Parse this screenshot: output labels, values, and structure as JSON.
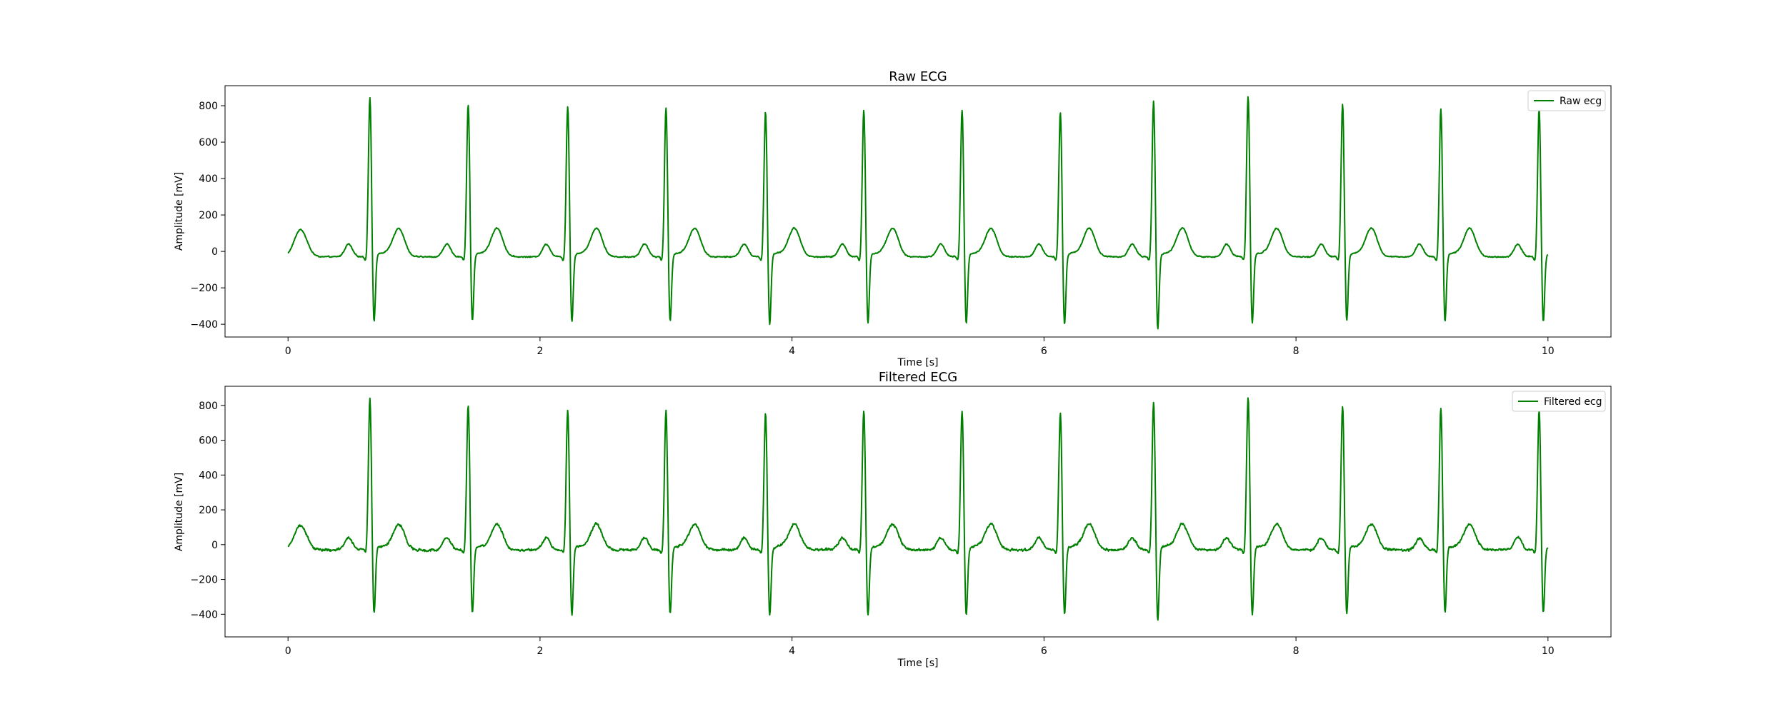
{
  "chart_data": [
    {
      "type": "line",
      "title": "Raw ECG",
      "xlabel": "Time [s]",
      "ylabel": "Amplitude [mV]",
      "xlim": [
        -0.5,
        10.5
      ],
      "ylim": [
        -470,
        910
      ],
      "xticks": [
        0,
        2,
        4,
        6,
        8,
        10
      ],
      "yticks": [
        -400,
        -200,
        0,
        200,
        400,
        600,
        800
      ],
      "grid": false,
      "legend_position": "top-right",
      "line_color": "#008000",
      "series": [
        {
          "name": "Raw ecg",
          "x_range": [
            0,
            10
          ],
          "beat_times": [
            0.65,
            1.43,
            2.22,
            3.0,
            3.79,
            4.57,
            5.35,
            6.13,
            6.87,
            7.62,
            8.37,
            9.15,
            9.93
          ],
          "r_peaks": [
            845,
            805,
            795,
            785,
            765,
            775,
            775,
            760,
            825,
            850,
            805,
            780,
            780
          ],
          "s_troughs": [
            -415,
            -410,
            -415,
            -415,
            -430,
            -425,
            -425,
            -430,
            -455,
            -425,
            -410,
            -415,
            -415
          ],
          "t_wave_peak": 120,
          "p_wave_peak": 40,
          "baseline": -30
        }
      ]
    },
    {
      "type": "line",
      "title": "Filtered ECG",
      "xlabel": "Time [s]",
      "ylabel": "Amplitude [mV]",
      "xlim": [
        -0.5,
        10.5
      ],
      "ylim": [
        -530,
        910
      ],
      "xticks": [
        0,
        2,
        4,
        6,
        8,
        10
      ],
      "yticks": [
        -400,
        -200,
        0,
        200,
        400,
        600,
        800
      ],
      "grid": false,
      "legend_position": "top-right",
      "line_color": "#008000",
      "series": [
        {
          "name": "Filtered ecg",
          "x_range": [
            0,
            10
          ],
          "beat_times": [
            0.65,
            1.43,
            2.22,
            3.0,
            3.79,
            4.57,
            5.35,
            6.13,
            6.87,
            7.62,
            8.37,
            9.15,
            9.93
          ],
          "r_peaks": [
            835,
            800,
            775,
            765,
            755,
            770,
            765,
            755,
            820,
            845,
            790,
            780,
            765
          ],
          "s_troughs": [
            -425,
            -425,
            -430,
            -425,
            -440,
            -440,
            -435,
            -430,
            -460,
            -435,
            -425,
            -425,
            -425
          ],
          "t_wave_peak": 110,
          "p_wave_peak": 40,
          "baseline": -30
        }
      ]
    }
  ]
}
